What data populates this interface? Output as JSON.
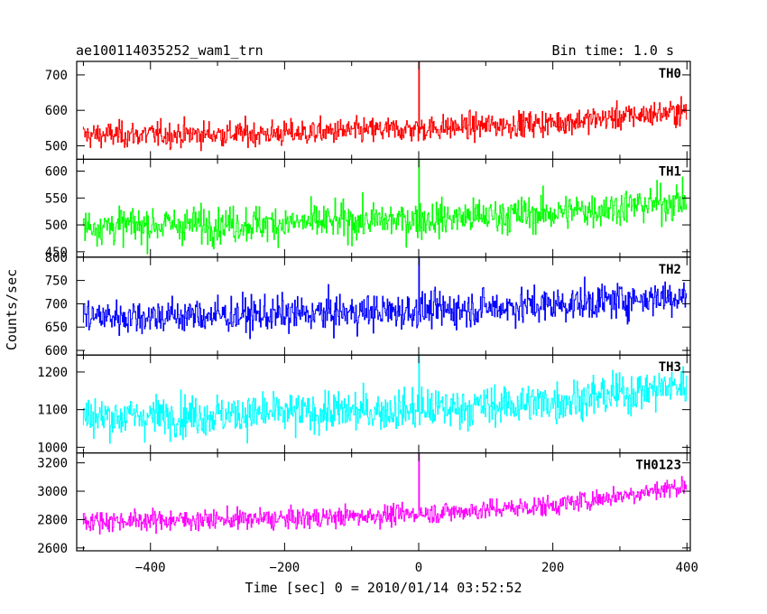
{
  "header": {
    "object_name": "ae100114035252_wam1_trn",
    "bin_time": "Bin time: 1.0 s"
  },
  "chart_data": {
    "type": "line",
    "xlabel": "Time [sec] 0 = 2010/01/14 03:52:52",
    "ylabel": "Counts/sec",
    "xlim": [
      -510,
      405
    ],
    "x_ticks": [
      -400,
      -200,
      0,
      200,
      400
    ],
    "x_tick_labels": [
      "−400",
      "−200",
      "0",
      "200",
      "400"
    ],
    "x_range": [
      -500,
      399
    ],
    "grid": false,
    "panels": [
      {
        "name": "TH0",
        "color": "#ff0000",
        "ylim": [
          462,
          738
        ],
        "yticks": [
          500,
          600,
          700
        ],
        "trend": [
          [
            -500,
            530
          ],
          [
            -200,
            535
          ],
          [
            0,
            548
          ],
          [
            200,
            565
          ],
          [
            400,
            598
          ]
        ],
        "noise": 30,
        "spike": {
          "x": 0,
          "y": 738
        }
      },
      {
        "name": "TH1",
        "color": "#00ff00",
        "ylim": [
          440,
          622
        ],
        "yticks": [
          450,
          500,
          550,
          600
        ],
        "trend": [
          [
            -500,
            498
          ],
          [
            -200,
            503
          ],
          [
            0,
            510
          ],
          [
            200,
            522
          ],
          [
            400,
            545
          ]
        ],
        "noise": 28,
        "spike": {
          "x": 0,
          "y": 622
        }
      },
      {
        "name": "TH2",
        "color": "#0000ff",
        "ylim": [
          590,
          800
        ],
        "yticks": [
          600,
          650,
          700,
          750,
          800
        ],
        "trend": [
          [
            -500,
            672
          ],
          [
            -200,
            677
          ],
          [
            0,
            685
          ],
          [
            200,
            698
          ],
          [
            400,
            718
          ]
        ],
        "noise": 32,
        "spike": {
          "x": 0,
          "y": 800
        }
      },
      {
        "name": "TH3",
        "color": "#00ffff",
        "ylim": [
          985,
          1245
        ],
        "yticks": [
          1000,
          1100,
          1200
        ],
        "trend": [
          [
            -500,
            1080
          ],
          [
            -200,
            1090
          ],
          [
            0,
            1100
          ],
          [
            200,
            1120
          ],
          [
            400,
            1165
          ]
        ],
        "noise": 45,
        "spike": {
          "x": 0,
          "y": 1245
        }
      },
      {
        "name": "TH0123",
        "color": "#ff00ff",
        "ylim": [
          2580,
          3270
        ],
        "yticks": [
          2600,
          2800,
          3000,
          3200
        ],
        "trend": [
          [
            -500,
            2790
          ],
          [
            -200,
            2805
          ],
          [
            0,
            2840
          ],
          [
            200,
            2900
          ],
          [
            400,
            3040
          ]
        ],
        "noise": 60,
        "spike": {
          "x": 0,
          "y": 3270
        }
      }
    ]
  }
}
